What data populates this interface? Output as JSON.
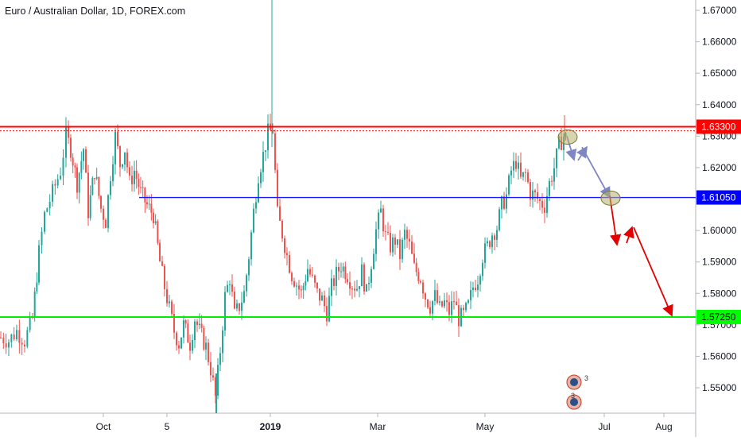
{
  "chart_data": {
    "type": "candlestick",
    "title": "Euro / Australian Dollar, 1D, FOREX.com",
    "y_ticks": [
      "1.55000",
      "1.56000",
      "1.57000",
      "1.58000",
      "1.59000",
      "1.60000",
      "1.61000",
      "1.62000",
      "1.63000",
      "1.64000",
      "1.65000",
      "1.66000",
      "1.67000"
    ],
    "x_ticks": [
      "Oct",
      "5",
      "2019",
      "Mar",
      "May",
      "Jul",
      "Aug"
    ],
    "ylim": [
      1.5443,
      1.6737
    ],
    "grid": false,
    "horizontal_levels": [
      {
        "value": 1.633,
        "label": "1.63300",
        "color": "#ff0000"
      },
      {
        "value": 1.6105,
        "label": "1.61050",
        "color": "#0000ff"
      },
      {
        "value": 1.5725,
        "label": "1.57250",
        "color": "#00ff00"
      }
    ],
    "colors": {
      "up": "#26a69a",
      "down": "#ef5350",
      "projection_blue": "#7f86c4",
      "projection_red": "#e30000",
      "highlight": "#b5b36c"
    },
    "price_path": [
      [
        0,
        1.566
      ],
      [
        10,
        1.565
      ],
      [
        20,
        1.568
      ],
      [
        30,
        1.565
      ],
      [
        40,
        1.572
      ],
      [
        48,
        1.593
      ],
      [
        55,
        1.605
      ],
      [
        65,
        1.612
      ],
      [
        75,
        1.619
      ],
      [
        82,
        1.63
      ],
      [
        88,
        1.626
      ],
      [
        96,
        1.615
      ],
      [
        104,
        1.626
      ],
      [
        110,
        1.606
      ],
      [
        118,
        1.619
      ],
      [
        126,
        1.607
      ],
      [
        132,
        1.603
      ],
      [
        138,
        1.618
      ],
      [
        144,
        1.63
      ],
      [
        150,
        1.621
      ],
      [
        156,
        1.626
      ],
      [
        162,
        1.615
      ],
      [
        168,
        1.619
      ],
      [
        176,
        1.612
      ],
      [
        184,
        1.608
      ],
      [
        192,
        1.605
      ],
      [
        200,
        1.59
      ],
      [
        206,
        1.582
      ],
      [
        212,
        1.575
      ],
      [
        218,
        1.568
      ],
      [
        224,
        1.564
      ],
      [
        230,
        1.57
      ],
      [
        238,
        1.564
      ],
      [
        244,
        1.572
      ],
      [
        250,
        1.568
      ],
      [
        258,
        1.563
      ],
      [
        264,
        1.556
      ],
      [
        270,
        1.547
      ],
      [
        276,
        1.562
      ],
      [
        282,
        1.579
      ],
      [
        288,
        1.585
      ],
      [
        294,
        1.573
      ],
      [
        300,
        1.576
      ],
      [
        306,
        1.58
      ],
      [
        312,
        1.592
      ],
      [
        318,
        1.606
      ],
      [
        324,
        1.618
      ],
      [
        330,
        1.624
      ],
      [
        336,
        1.631
      ],
      [
        342,
        1.632
      ],
      [
        348,
        1.605
      ],
      [
        354,
        1.599
      ],
      [
        360,
        1.592
      ],
      [
        366,
        1.586
      ],
      [
        372,
        1.583
      ],
      [
        378,
        1.58
      ],
      [
        386,
        1.588
      ],
      [
        392,
        1.584
      ],
      [
        398,
        1.58
      ],
      [
        404,
        1.578
      ],
      [
        410,
        1.574
      ],
      [
        416,
        1.582
      ],
      [
        422,
        1.586
      ],
      [
        428,
        1.589
      ],
      [
        436,
        1.586
      ],
      [
        442,
        1.583
      ],
      [
        448,
        1.582
      ],
      [
        454,
        1.587
      ],
      [
        460,
        1.58
      ],
      [
        466,
        1.59
      ],
      [
        472,
        1.6
      ],
      [
        478,
        1.606
      ],
      [
        484,
        1.598
      ],
      [
        490,
        1.595
      ],
      [
        496,
        1.597
      ],
      [
        502,
        1.592
      ],
      [
        508,
        1.599
      ],
      [
        514,
        1.595
      ],
      [
        520,
        1.588
      ],
      [
        528,
        1.585
      ],
      [
        534,
        1.579
      ],
      [
        540,
        1.576
      ],
      [
        546,
        1.579
      ],
      [
        552,
        1.575
      ],
      [
        558,
        1.577
      ],
      [
        564,
        1.574
      ],
      [
        570,
        1.578
      ],
      [
        576,
        1.572
      ],
      [
        582,
        1.573
      ],
      [
        588,
        1.576
      ],
      [
        594,
        1.582
      ],
      [
        600,
        1.585
      ],
      [
        606,
        1.592
      ],
      [
        612,
        1.595
      ],
      [
        618,
        1.599
      ],
      [
        624,
        1.601
      ],
      [
        630,
        1.608
      ],
      [
        636,
        1.611
      ],
      [
        642,
        1.619
      ],
      [
        648,
        1.622
      ],
      [
        654,
        1.616
      ],
      [
        660,
        1.618
      ],
      [
        666,
        1.612
      ],
      [
        672,
        1.611
      ],
      [
        678,
        1.609
      ],
      [
        684,
        1.608
      ],
      [
        690,
        1.615
      ],
      [
        696,
        1.62
      ],
      [
        702,
        1.627
      ],
      [
        708,
        1.63
      ],
      [
        713,
        1.629
      ]
    ],
    "projection_lines": [
      {
        "from": [
          713,
          1.63
        ],
        "to": [
          722,
          1.6225
        ],
        "color": "projection_blue"
      },
      {
        "from": [
          727,
          1.6223
        ],
        "to": [
          738,
          1.6265
        ],
        "color": "projection_blue"
      },
      {
        "from": [
          732,
          1.6265
        ],
        "to": [
          767,
          1.6105
        ],
        "color": "projection_blue"
      },
      {
        "from": [
          767,
          1.611
        ],
        "to": [
          776,
          1.5955
        ],
        "color": "projection_red"
      },
      {
        "from": [
          788,
          1.596
        ],
        "to": [
          795,
          1.601
        ],
        "color": "projection_red"
      },
      {
        "from": [
          797,
          1.601
        ],
        "to": [
          845,
          1.573
        ],
        "color": "projection_red"
      }
    ],
    "highlight_ellipses": [
      {
        "center": [
          714,
          1.6297
        ]
      },
      {
        "center": [
          768,
          1.6103
        ]
      }
    ]
  }
}
